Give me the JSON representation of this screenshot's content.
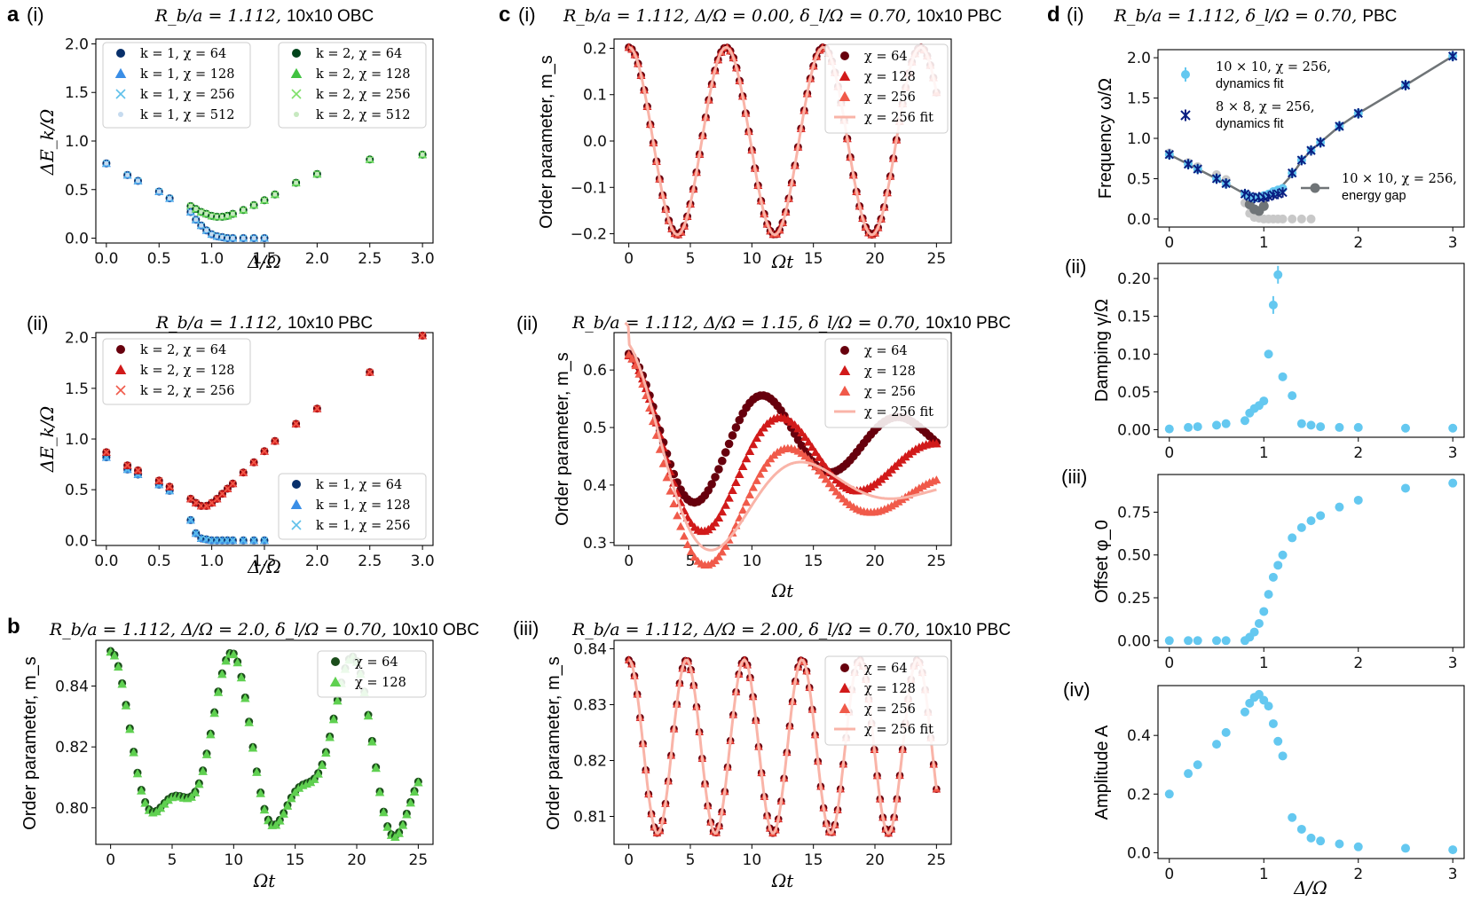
{
  "figure_labels": {
    "a": "a",
    "b": "b",
    "c": "c",
    "d": "d",
    "i": "(i)",
    "ii": "(ii)",
    "iii": "(iii)",
    "iv": "(iv)"
  },
  "colors": {
    "k1_c64": "#08306b",
    "k1_c128": "#3a8ee6",
    "k1_c256": "#5fc0ea",
    "k1_c512": "#c6dbef",
    "k2_c64": "#00441b",
    "k2_c128": "#41c241",
    "k2_c256": "#7fe06a",
    "k2_c512": "#c7e9c0",
    "r_c64": "#67000d",
    "r_c128": "#d11a1a",
    "r_c256": "#f05a4a",
    "r_fit": "#f9b4a8",
    "b_c64": "#1b4d1b",
    "b_c128": "#5fd050",
    "d_light": "#64c8f0",
    "d_dark": "#0a1f82",
    "d_gap": "#6f7477"
  },
  "chart_data": [
    {
      "id": "a_i",
      "type": "scatter",
      "title_math": "R_b/a = 1.112,",
      "title_text": "10x10 OBC",
      "xlabel": "Δ/Ω",
      "ylabel": "ΔE_k/Ω",
      "xlim": [
        -0.1,
        3.1
      ],
      "ylim": [
        -0.05,
        2.05
      ],
      "xticks": [
        "0.0",
        "0.5",
        "1.0",
        "1.5",
        "2.0",
        "2.5",
        "3.0"
      ],
      "yticks": [
        "0.0",
        "0.5",
        "1.0",
        "1.5",
        "2.0"
      ],
      "legend1": [
        "k = 1, χ = 64",
        "k = 1, χ = 128",
        "k = 1, χ = 256",
        "k = 1, χ = 512"
      ],
      "legend2": [
        "k = 2, χ = 64",
        "k = 2, χ = 128",
        "k = 2, χ = 256",
        "k = 2, χ = 512"
      ],
      "x": [
        0.0,
        0.2,
        0.3,
        0.5,
        0.6,
        0.8,
        0.85,
        0.9,
        0.95,
        1.0,
        1.05,
        1.1,
        1.15,
        1.2,
        1.3,
        1.4,
        1.5,
        1.6,
        1.8,
        2.0,
        2.5,
        3.0
      ],
      "k1": [
        0.77,
        0.65,
        0.59,
        0.48,
        0.41,
        0.27,
        0.19,
        0.13,
        0.08,
        0.04,
        0.02,
        0.01,
        0.0,
        0.0,
        0.0,
        0.0,
        0.0,
        null,
        null,
        null,
        null,
        null
      ],
      "k2": [
        null,
        null,
        null,
        null,
        null,
        0.33,
        0.3,
        0.27,
        0.25,
        0.23,
        0.22,
        0.22,
        0.23,
        0.25,
        0.29,
        0.34,
        0.39,
        0.45,
        0.57,
        0.66,
        0.81,
        0.86
      ]
    },
    {
      "id": "a_ii",
      "type": "scatter",
      "title_math": "R_b/a = 1.112,",
      "title_text": "10x10 PBC",
      "xlabel": "Δ/Ω",
      "ylabel": "ΔE_k/Ω",
      "xlim": [
        -0.1,
        3.1
      ],
      "ylim": [
        -0.05,
        2.05
      ],
      "xticks": [
        "0.0",
        "0.5",
        "1.0",
        "1.5",
        "2.0",
        "2.5",
        "3.0"
      ],
      "yticks": [
        "0.0",
        "0.5",
        "1.0",
        "1.5",
        "2.0"
      ],
      "legend1": [
        "k = 2, χ = 64",
        "k = 2, χ = 128",
        "k = 2, χ = 256"
      ],
      "legend2": [
        "k = 1, χ = 64",
        "k = 1, χ = 128",
        "k = 1, χ = 256"
      ],
      "x": [
        0.0,
        0.2,
        0.3,
        0.5,
        0.6,
        0.8,
        0.85,
        0.9,
        0.95,
        1.0,
        1.05,
        1.1,
        1.15,
        1.2,
        1.3,
        1.4,
        1.5,
        1.6,
        1.8,
        2.0,
        2.5,
        3.0
      ],
      "k2": [
        0.87,
        0.74,
        0.69,
        0.59,
        0.53,
        0.41,
        0.37,
        0.34,
        0.34,
        0.37,
        0.41,
        0.46,
        0.51,
        0.56,
        0.67,
        0.77,
        0.88,
        0.98,
        1.15,
        1.3,
        1.66,
        2.02
      ],
      "k1": [
        0.82,
        0.7,
        0.65,
        0.55,
        0.49,
        0.2,
        0.07,
        0.02,
        0.01,
        0.0,
        0.0,
        0.0,
        0.0,
        0.0,
        0.0,
        0.0,
        0.0,
        null,
        null,
        null,
        null,
        null
      ]
    },
    {
      "id": "b",
      "type": "line",
      "title_math": "R_b/a = 1.112, Δ/Ω = 2.0, δ_l/Ω = 0.70,",
      "title_text": "10x10 OBC",
      "xlabel": "Ωt",
      "ylabel": "Order parameter, m_s",
      "xlim": [
        -1.2,
        26.2
      ],
      "ylim": [
        0.788,
        0.855
      ],
      "xticks": [
        "0",
        "5",
        "10",
        "15",
        "20",
        "25"
      ],
      "yticks": [
        "0.80",
        "0.82",
        "0.84"
      ],
      "legend": [
        "χ = 64",
        "χ = 128"
      ],
      "model": {
        "offset": 0.8175,
        "terms": [
          [
            0.024,
            0.655,
            0.0
          ],
          [
            0.01,
            1.26,
            0.0
          ]
        ]
      },
      "t_end": 25,
      "n_points": 81
    },
    {
      "id": "c_i",
      "type": "line",
      "title_math": "R_b/a = 1.112, Δ/Ω = 0.00, δ_l/Ω = 0.70,",
      "title_text": "10x10 PBC",
      "xlabel": "Ωt",
      "ylabel": "Order parameter, m_s",
      "xlim": [
        -1.2,
        26.2
      ],
      "ylim": [
        -0.22,
        0.22
      ],
      "xticks": [
        "0",
        "5",
        "10",
        "15",
        "20",
        "25"
      ],
      "yticks": [
        "−0.2",
        "−0.1",
        "0.0",
        "0.1",
        "0.2"
      ],
      "legend": [
        "χ = 64",
        "χ = 128",
        "χ = 256",
        "χ = 256 fit"
      ],
      "model": {
        "offset": 0.0,
        "amp": 0.202,
        "omega": 0.795,
        "gamma": 0.0,
        "phase": 0.0
      },
      "t_end": 25,
      "n_points": 101
    },
    {
      "id": "c_ii",
      "type": "line",
      "title_math": "R_b/a = 1.112, Δ/Ω = 1.15, δ_l/Ω = 0.70,",
      "title_text": "10x10 PBC",
      "xlabel": "Ωt",
      "ylabel": "Order parameter, m_s",
      "xlim": [
        -1.2,
        26.2
      ],
      "ylim": [
        0.295,
        0.665
      ],
      "xticks": [
        "0",
        "5",
        "10",
        "15",
        "20",
        "25"
      ],
      "yticks": [
        "0.3",
        "0.4",
        "0.5",
        "0.6"
      ],
      "legend": [
        "χ = 64",
        "χ = 128",
        "χ = 256",
        "χ = 256 fit"
      ],
      "t_end": 25,
      "n_points": 90
    },
    {
      "id": "c_iii",
      "type": "line",
      "title_math": "R_b/a = 1.112, Δ/Ω = 2.00, δ_l/Ω = 0.70,",
      "title_text": "10x10 PBC",
      "xlabel": "Ωt",
      "ylabel": "Order parameter, m_s",
      "xlim": [
        -1.2,
        26.2
      ],
      "ylim": [
        0.805,
        0.8415
      ],
      "xticks": [
        "0",
        "5",
        "10",
        "15",
        "20",
        "25"
      ],
      "yticks": [
        "0.81",
        "0.82",
        "0.83",
        "0.84"
      ],
      "legend": [
        "χ = 64",
        "χ = 128",
        "χ = 256",
        "χ = 256 fit"
      ],
      "model": {
        "offset": 0.8225,
        "amp": 0.0155,
        "omega": 1.34,
        "gamma": 0.0,
        "phase": 0.0
      },
      "t_end": 25,
      "n_points": 110
    },
    {
      "id": "d_i",
      "type": "scatter",
      "title_math": "R_b/a = 1.112, δ_l/Ω = 0.70,",
      "title_text": "PBC",
      "xlabel": "",
      "ylabel": "Frequency ω/Ω",
      "xlim": [
        -0.12,
        3.12
      ],
      "ylim": [
        -0.1,
        2.1
      ],
      "xticks": [
        "0",
        "1",
        "2",
        "3"
      ],
      "yticks": [
        "0.0",
        "0.5",
        "1.0",
        "1.5",
        "2.0"
      ],
      "legend_a": [
        "10 × 10, χ = 256,",
        "dynamics fit"
      ],
      "legend_b": [
        "8 × 8, χ = 256,",
        "dynamics fit"
      ],
      "legend_c": [
        "10 × 10, χ = 256,",
        "energy gap"
      ],
      "x": [
        0.0,
        0.2,
        0.3,
        0.5,
        0.6,
        0.8,
        0.85,
        0.9,
        0.95,
        1.0,
        1.05,
        1.1,
        1.15,
        1.2,
        1.3,
        1.4,
        1.5,
        1.6,
        1.8,
        2.0,
        2.5,
        3.0
      ],
      "freq_10": [
        0.8,
        0.68,
        0.62,
        0.5,
        0.44,
        0.31,
        0.28,
        0.26,
        0.27,
        0.29,
        0.31,
        0.34,
        0.36,
        0.38,
        0.57,
        0.73,
        0.85,
        0.95,
        1.15,
        1.31,
        1.66,
        2.02
      ],
      "freq_8": [
        0.8,
        0.68,
        0.62,
        0.5,
        0.44,
        0.31,
        0.28,
        0.26,
        0.27,
        0.27,
        0.28,
        0.3,
        0.31,
        0.33,
        0.57,
        0.73,
        0.85,
        0.95,
        1.15,
        1.31,
        1.66,
        2.02
      ],
      "gap_light": [
        0.82,
        0.7,
        0.65,
        0.55,
        0.49,
        0.2,
        0.07,
        0.02,
        0.01,
        0.0,
        0.0,
        0.0,
        0.0,
        0.0,
        0.0,
        0.0,
        0.0,
        null,
        null,
        null,
        null,
        null
      ],
      "gap_dark": [
        0.8,
        0.68,
        0.62,
        0.5,
        0.44,
        0.31,
        0.18,
        0.12,
        0.1,
        0.16,
        0.26,
        0.33,
        0.38,
        0.42,
        0.55,
        0.72,
        0.85,
        0.95,
        1.15,
        1.31,
        1.66,
        2.02
      ]
    },
    {
      "id": "d_ii",
      "type": "scatter",
      "xlabel": "",
      "ylabel": "Damping γ/Ω",
      "xlim": [
        -0.12,
        3.12
      ],
      "ylim": [
        -0.01,
        0.22
      ],
      "xticks": [
        "0",
        "1",
        "2",
        "3"
      ],
      "yticks": [
        "0.00",
        "0.05",
        "0.10",
        "0.15",
        "0.20"
      ],
      "x": [
        0.0,
        0.2,
        0.3,
        0.5,
        0.6,
        0.8,
        0.85,
        0.9,
        0.95,
        1.0,
        1.05,
        1.1,
        1.15,
        1.2,
        1.3,
        1.4,
        1.5,
        1.6,
        1.8,
        2.0,
        2.5,
        3.0
      ],
      "y": [
        0.001,
        0.003,
        0.004,
        0.006,
        0.008,
        0.012,
        0.022,
        0.028,
        0.032,
        0.038,
        0.1,
        0.165,
        0.205,
        0.07,
        0.045,
        0.008,
        0.006,
        0.004,
        0.003,
        0.003,
        0.002,
        0.002
      ]
    },
    {
      "id": "d_iii",
      "type": "scatter",
      "xlabel": "",
      "ylabel": "Offset φ_0",
      "xlim": [
        -0.12,
        3.12
      ],
      "ylim": [
        -0.04,
        0.97
      ],
      "xticks": [
        "0",
        "1",
        "2",
        "3"
      ],
      "yticks": [
        "0.00",
        "0.25",
        "0.50",
        "0.75"
      ],
      "x": [
        0.0,
        0.2,
        0.3,
        0.5,
        0.6,
        0.8,
        0.85,
        0.9,
        0.95,
        1.0,
        1.05,
        1.1,
        1.15,
        1.2,
        1.3,
        1.4,
        1.5,
        1.6,
        1.8,
        2.0,
        2.5,
        3.0
      ],
      "y": [
        0.0,
        0.0,
        0.0,
        0.0,
        0.0,
        0.0,
        0.02,
        0.05,
        0.1,
        0.17,
        0.27,
        0.37,
        0.44,
        0.5,
        0.6,
        0.66,
        0.7,
        0.73,
        0.78,
        0.82,
        0.89,
        0.92
      ]
    },
    {
      "id": "d_iv",
      "type": "scatter",
      "xlabel": "Δ/Ω",
      "ylabel": "Amplitude A",
      "xlim": [
        -0.12,
        3.12
      ],
      "ylim": [
        -0.02,
        0.57
      ],
      "xticks": [
        "0",
        "1",
        "2",
        "3"
      ],
      "yticks": [
        "0.0",
        "0.2",
        "0.4"
      ],
      "x": [
        0.0,
        0.2,
        0.3,
        0.5,
        0.6,
        0.8,
        0.85,
        0.9,
        0.95,
        1.0,
        1.05,
        1.1,
        1.15,
        1.2,
        1.3,
        1.4,
        1.5,
        1.6,
        1.8,
        2.0,
        2.5,
        3.0
      ],
      "y": [
        0.2,
        0.27,
        0.3,
        0.37,
        0.41,
        0.48,
        0.51,
        0.53,
        0.54,
        0.52,
        0.5,
        0.44,
        0.38,
        0.33,
        0.12,
        0.08,
        0.05,
        0.04,
        0.03,
        0.02,
        0.015,
        0.01
      ]
    }
  ]
}
